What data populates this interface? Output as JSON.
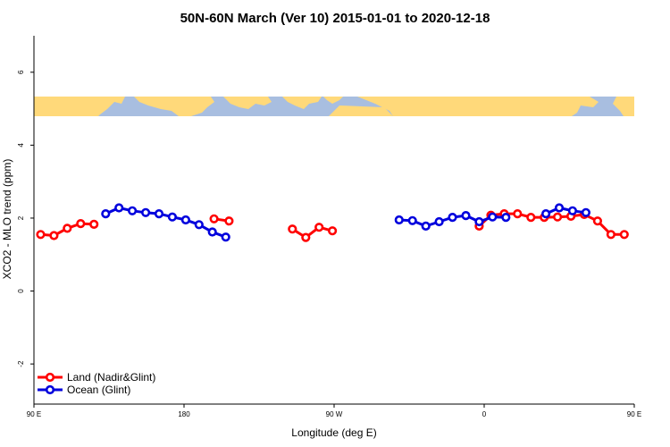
{
  "chart_data": {
    "type": "line",
    "title": "50N-60N March (Ver 10)   2015-01-01 to 2020-12-18",
    "xlabel": "Longitude (deg E)",
    "ylabel": "XCO2 - MLO trend (ppm)",
    "xlim": [
      90,
      450
    ],
    "ylim": [
      -3.1,
      7.0
    ],
    "x_ticks": [
      {
        "value": 90,
        "label": "90 E"
      },
      {
        "value": 180,
        "label": "180"
      },
      {
        "value": 270,
        "label": "90 W"
      },
      {
        "value": 360,
        "label": "0"
      },
      {
        "value": 450,
        "label": "90 E"
      },
      {
        "value": 540,
        "label": "180"
      }
    ],
    "y_ticks": [
      -2,
      0,
      2,
      4,
      6
    ],
    "grid": false,
    "legend_position": "bottom-left",
    "colors": {
      "land": "#ff0000",
      "ocean": "#0000dd",
      "map_ocean": "#a8bee0",
      "map_land": "#ffd97a"
    },
    "series": [
      {
        "name": "Land (Nadir&Glint)",
        "color": "#ff0000",
        "segments": [
          [
            [
              94,
              1.55
            ],
            [
              102,
              1.52
            ],
            [
              110,
              1.72
            ],
            [
              118,
              1.85
            ],
            [
              126,
              1.83
            ]
          ],
          [
            [
              198,
              1.98
            ],
            [
              207,
              1.92
            ]
          ],
          [
            [
              245,
              1.7
            ],
            [
              253,
              1.47
            ],
            [
              261,
              1.75
            ],
            [
              269,
              1.65
            ]
          ],
          [
            [
              357,
              1.78
            ],
            [
              364,
              2.08
            ],
            [
              372,
              2.12
            ],
            [
              380,
              2.12
            ],
            [
              388,
              2.02
            ],
            [
              396,
              2.02
            ],
            [
              404,
              2.03
            ],
            [
              412,
              2.05
            ],
            [
              420,
              2.1
            ],
            [
              428,
              1.92
            ],
            [
              436,
              1.55
            ],
            [
              444,
              1.55
            ],
            [
              452,
              1.72
            ],
            [
              460,
              1.85
            ],
            [
              468,
              1.83
            ]
          ]
        ]
      },
      {
        "name": "Ocean (Glint)",
        "color": "#0000dd",
        "segments": [
          [
            [
              133,
              2.12
            ],
            [
              141,
              2.28
            ],
            [
              149,
              2.2
            ],
            [
              157,
              2.15
            ],
            [
              165,
              2.12
            ],
            [
              173,
              2.03
            ],
            [
              181,
              1.95
            ],
            [
              189,
              1.82
            ],
            [
              197,
              1.62
            ],
            [
              205,
              1.48
            ]
          ],
          [
            [
              309,
              1.95
            ],
            [
              317,
              1.93
            ],
            [
              325,
              1.78
            ],
            [
              333,
              1.9
            ],
            [
              341,
              2.02
            ],
            [
              349,
              2.07
            ],
            [
              357,
              1.9
            ],
            [
              365,
              2.03
            ],
            [
              373,
              2.02
            ]
          ],
          [
            [
              397,
              2.12
            ],
            [
              405,
              2.28
            ],
            [
              413,
              2.2
            ],
            [
              421,
              2.15
            ]
          ]
        ]
      }
    ]
  }
}
